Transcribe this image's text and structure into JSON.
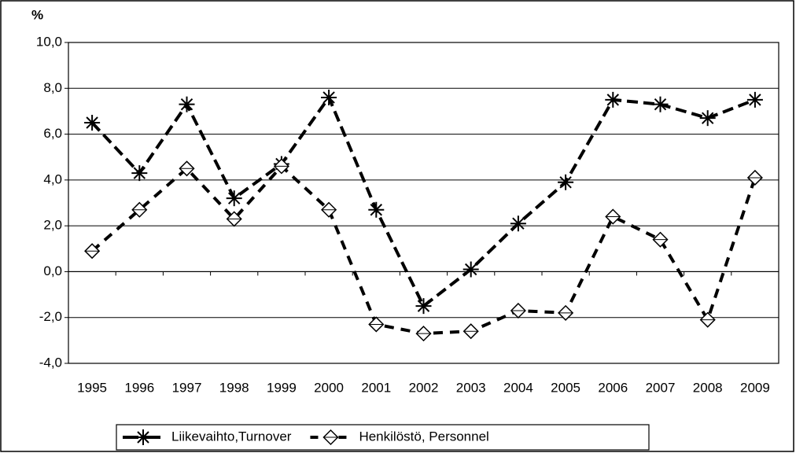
{
  "chart_data": {
    "type": "line",
    "y_label": "%",
    "categories": [
      "1995",
      "1996",
      "1997",
      "1998",
      "1999",
      "2000",
      "2001",
      "2002",
      "2003",
      "2004",
      "2005",
      "2006",
      "2007",
      "2008",
      "2009"
    ],
    "series": [
      {
        "name": "Liikevaihto,Turnover",
        "color": "#000000",
        "marker": "asterisk",
        "values": [
          6.5,
          4.3,
          7.3,
          3.2,
          4.7,
          7.6,
          2.7,
          -1.5,
          0.1,
          2.1,
          3.9,
          7.5,
          7.3,
          6.7,
          7.5
        ]
      },
      {
        "name": "Henkilöstö, Personnel",
        "color": "#000000",
        "marker": "diamond",
        "values": [
          0.9,
          2.7,
          4.5,
          2.3,
          4.6,
          2.7,
          -2.3,
          -2.7,
          -2.6,
          -1.7,
          -1.8,
          2.4,
          1.4,
          -2.1,
          4.1
        ]
      }
    ],
    "ylim": [
      -4,
      10
    ],
    "yticks": [
      {
        "value": -4,
        "label": "-4,0"
      },
      {
        "value": -2,
        "label": "-2,0"
      },
      {
        "value": 0,
        "label": "0,0"
      },
      {
        "value": 2,
        "label": "2,0"
      },
      {
        "value": 4,
        "label": "4,0"
      },
      {
        "value": 6,
        "label": "6,0"
      },
      {
        "value": 8,
        "label": "8,0"
      },
      {
        "value": 10,
        "label": "10,0"
      }
    ],
    "grid": true,
    "legend": "bottom"
  }
}
